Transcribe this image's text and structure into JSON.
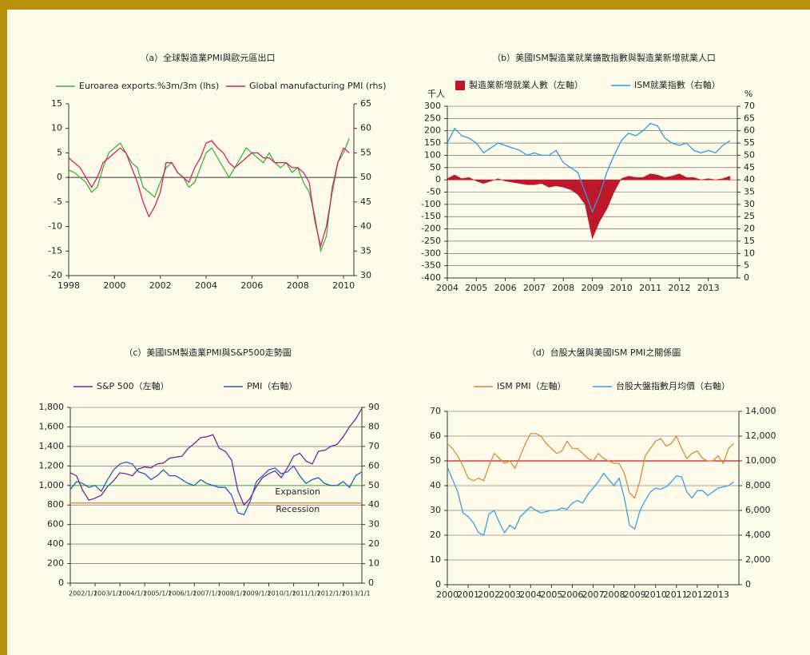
{
  "chart_data": [
    {
      "type": "line",
      "title": "（a）全球製造業PMI與歐元區出口",
      "grid": false,
      "zero_line": true,
      "xlim": [
        1998,
        2010.45
      ],
      "xticks": [
        1998,
        2000,
        2002,
        2004,
        2006,
        2008,
        2010
      ],
      "ylim": [
        -20,
        15
      ],
      "yticks": [
        -20,
        -15,
        -10,
        -5,
        0,
        5,
        10,
        15
      ],
      "y2lim": [
        30,
        65
      ],
      "y2ticks": [
        30,
        35,
        40,
        45,
        50,
        55,
        60,
        65
      ],
      "x": [
        1998,
        1998.25,
        1998.5,
        1998.75,
        1999,
        1999.25,
        1999.5,
        1999.75,
        2000,
        2000.25,
        2000.5,
        2000.75,
        2001,
        2001.25,
        2001.5,
        2001.75,
        2002,
        2002.25,
        2002.5,
        2002.75,
        2003,
        2003.25,
        2003.5,
        2003.75,
        2004,
        2004.25,
        2004.5,
        2004.75,
        2005,
        2005.25,
        2005.5,
        2005.75,
        2006,
        2006.25,
        2006.5,
        2006.75,
        2007,
        2007.25,
        2007.5,
        2007.75,
        2008,
        2008.25,
        2008.5,
        2008.75,
        2009,
        2009.25,
        2009.5,
        2009.75,
        2010,
        2010.25
      ],
      "series": [
        {
          "name": "Euroarea exports.%3m/3m (lhs)",
          "color": "#3cb043",
          "style": "line",
          "axis": "y",
          "values": [
            1.5,
            1,
            0,
            -1,
            -3,
            -2,
            2,
            5,
            6,
            7,
            5,
            3,
            2,
            -2,
            -3,
            -4,
            -1,
            2,
            3,
            1,
            0,
            -2,
            -1,
            2,
            5,
            6,
            4,
            2,
            0,
            2,
            4,
            6,
            5,
            4,
            3,
            5,
            3,
            2,
            3,
            1,
            2,
            -1,
            -3,
            -8,
            -15,
            -12,
            -2,
            3,
            5,
            8
          ]
        },
        {
          "name": "Global manufacturing PMI (rhs)",
          "color": "#d6215b",
          "style": "line",
          "axis": "y2",
          "values": [
            54,
            53,
            52,
            50,
            48,
            50,
            53,
            54,
            55,
            56,
            55,
            52,
            49,
            45,
            42,
            44,
            47,
            53,
            53,
            51,
            50,
            49,
            52,
            54,
            57,
            57.5,
            56,
            55,
            53,
            52,
            53,
            54,
            55,
            55,
            54,
            54,
            53,
            53,
            53,
            52,
            52,
            51,
            49,
            41,
            36,
            40,
            47,
            53,
            56,
            55
          ]
        }
      ]
    },
    {
      "type": "line",
      "title": "（b）美國ISM製造業就業擴散指數與製造業新增就業人口",
      "grid": true,
      "y_unit": "千人",
      "y2_unit": "%",
      "xlim": [
        2004,
        2014
      ],
      "xticks": [
        2004,
        2005,
        2006,
        2007,
        2008,
        2009,
        2010,
        2011,
        2012,
        2013
      ],
      "ylim": [
        -400,
        300
      ],
      "yticks": [
        -400,
        -350,
        -300,
        -250,
        -200,
        -150,
        -100,
        -50,
        0,
        50,
        100,
        150,
        200,
        250,
        300
      ],
      "y2lim": [
        0,
        70
      ],
      "y2ticks": [
        0,
        5,
        10,
        15,
        20,
        25,
        30,
        35,
        40,
        45,
        50,
        55,
        60,
        65,
        70
      ],
      "x": [
        2004,
        2004.25,
        2004.5,
        2004.75,
        2005,
        2005.25,
        2005.5,
        2005.75,
        2006,
        2006.25,
        2006.5,
        2006.75,
        2007,
        2007.25,
        2007.5,
        2007.75,
        2008,
        2008.25,
        2008.5,
        2008.75,
        2009,
        2009.25,
        2009.5,
        2009.75,
        2010,
        2010.25,
        2010.5,
        2010.75,
        2011,
        2011.25,
        2011.5,
        2011.75,
        2012,
        2012.25,
        2012.5,
        2012.75,
        2013,
        2013.25,
        2013.5,
        2013.75
      ],
      "series": [
        {
          "name": "製造業新增就業人數（左軸）",
          "color": "#c0182b",
          "style": "area",
          "axis": "y",
          "values": [
            5,
            20,
            5,
            10,
            -5,
            -15,
            -5,
            5,
            -5,
            -10,
            -15,
            -20,
            -20,
            -15,
            -30,
            -25,
            -30,
            -40,
            -60,
            -100,
            -240,
            -170,
            -120,
            -50,
            5,
            15,
            10,
            10,
            25,
            20,
            10,
            15,
            25,
            10,
            10,
            0,
            5,
            0,
            5,
            15
          ]
        },
        {
          "name": "ISM就業指數（右軸）",
          "color": "#2a9fd8",
          "style": "line",
          "axis": "y2",
          "values": [
            55,
            61,
            58,
            57,
            55,
            51,
            53,
            55,
            54,
            53,
            52,
            50,
            51,
            50,
            50,
            52,
            47,
            45,
            43,
            35,
            27,
            34,
            43,
            50,
            56,
            59,
            58,
            60,
            63,
            62,
            57,
            55,
            54,
            55,
            52,
            51,
            52,
            51,
            54,
            56
          ]
        }
      ]
    },
    {
      "type": "line",
      "title": "（c）美國ISM製造業PMI與S&P500走勢圖",
      "grid": true,
      "xlim": [
        2002,
        2013.75
      ],
      "xticks": [
        {
          "value": 2002,
          "label": "2002/1/1"
        },
        {
          "value": 2003,
          "label": "2003/1/1"
        },
        {
          "value": 2004,
          "label": "2004/1/1"
        },
        {
          "value": 2005,
          "label": "2005/1/1"
        },
        {
          "value": 2006,
          "label": "2006/1/1"
        },
        {
          "value": 2007,
          "label": "2007/1/1"
        },
        {
          "value": 2008,
          "label": "2008/1/1"
        },
        {
          "value": 2009,
          "label": "2009/1/1"
        },
        {
          "value": 2010,
          "label": "2010/1/1"
        },
        {
          "value": 2011,
          "label": "2011/1/1"
        },
        {
          "value": 2012,
          "label": "2012/1/1"
        },
        {
          "value": 2013,
          "label": "2013/1/1"
        }
      ],
      "ylim": [
        0,
        1800
      ],
      "yticks": [
        0,
        200,
        400,
        600,
        800,
        {
          "value": 1000,
          "label": "1,000"
        },
        {
          "value": 1200,
          "label": "1,200"
        },
        {
          "value": 1400,
          "label": "1,400"
        },
        {
          "value": 1600,
          "label": "1,600"
        },
        {
          "value": 1800,
          "label": "1,800"
        }
      ],
      "y2lim": [
        0,
        90
      ],
      "y2ticks": [
        0,
        10,
        20,
        30,
        40,
        50,
        60,
        70,
        80,
        90
      ],
      "reference_lines": [
        {
          "value": 50,
          "label": "Expansion",
          "color": "#5cb85c",
          "axis": "y2"
        },
        {
          "value": 41,
          "label": "Recession",
          "color": "#e07b39",
          "axis": "y2"
        }
      ],
      "x": [
        2002,
        2002.25,
        2002.5,
        2002.75,
        2003,
        2003.25,
        2003.5,
        2003.75,
        2004,
        2004.25,
        2004.5,
        2004.75,
        2005,
        2005.25,
        2005.5,
        2005.75,
        2006,
        2006.25,
        2006.5,
        2006.75,
        2007,
        2007.25,
        2007.5,
        2007.75,
        2008,
        2008.25,
        2008.5,
        2008.75,
        2009,
        2009.25,
        2009.5,
        2009.75,
        2010,
        2010.25,
        2010.5,
        2010.75,
        2011,
        2011.25,
        2011.5,
        2011.75,
        2012,
        2012.25,
        2012.5,
        2012.75,
        2013,
        2013.25,
        2013.5,
        2013.75
      ],
      "series": [
        {
          "name": "S&P 500（左軸）",
          "color": "#6a2c91",
          "style": "line",
          "axis": "y",
          "values": [
            1130,
            1100,
            950,
            850,
            870,
            900,
            990,
            1050,
            1130,
            1120,
            1100,
            1170,
            1190,
            1180,
            1220,
            1230,
            1280,
            1290,
            1300,
            1380,
            1430,
            1490,
            1500,
            1520,
            1380,
            1350,
            1260,
            950,
            800,
            870,
            990,
            1080,
            1120,
            1150,
            1080,
            1180,
            1300,
            1330,
            1250,
            1220,
            1350,
            1360,
            1400,
            1420,
            1500,
            1600,
            1680,
            1790
          ]
        },
        {
          "name": "PMI（右軸）",
          "color": "#1f5fb4",
          "style": "line",
          "axis": "y2",
          "values": [
            48,
            52,
            51,
            49,
            50,
            47,
            53,
            58,
            61,
            62,
            61,
            57,
            56,
            53,
            55,
            58,
            55,
            55,
            53,
            51,
            50,
            53,
            51,
            50,
            49,
            49,
            45,
            36,
            35,
            42,
            52,
            55,
            58,
            59,
            56,
            57,
            60,
            55,
            51,
            53,
            54,
            51,
            50,
            50,
            52,
            49,
            55,
            57
          ]
        }
      ]
    },
    {
      "type": "line",
      "title": "（d）台股大盤與美國ISM PMI之關係圖",
      "grid": true,
      "xlim": [
        2000,
        2014
      ],
      "xticks": [
        2000,
        2001,
        2002,
        2003,
        2004,
        2005,
        2006,
        2007,
        2008,
        2009,
        2010,
        2011,
        2012,
        2013
      ],
      "ylim": [
        0,
        70
      ],
      "yticks": [
        0,
        10,
        20,
        30,
        40,
        50,
        60,
        70
      ],
      "y2lim": [
        0,
        14000
      ],
      "y2ticks": [
        0,
        {
          "value": 2000,
          "label": "2,000"
        },
        {
          "value": 4000,
          "label": "4,000"
        },
        {
          "value": 6000,
          "label": "6,000"
        },
        {
          "value": 8000,
          "label": "8,000"
        },
        {
          "value": 10000,
          "label": "10,000"
        },
        {
          "value": 12000,
          "label": "12,000"
        },
        {
          "value": 14000,
          "label": "14,000"
        }
      ],
      "reference_lines": [
        {
          "value": 50,
          "color": "#c0182b",
          "axis": "y"
        }
      ],
      "x": [
        2000,
        2000.25,
        2000.5,
        2000.75,
        2001,
        2001.25,
        2001.5,
        2001.75,
        2002,
        2002.25,
        2002.5,
        2002.75,
        2003,
        2003.25,
        2003.5,
        2003.75,
        2004,
        2004.25,
        2004.5,
        2004.75,
        2005,
        2005.25,
        2005.5,
        2005.75,
        2006,
        2006.25,
        2006.5,
        2006.75,
        2007,
        2007.25,
        2007.5,
        2007.75,
        2008,
        2008.25,
        2008.5,
        2008.75,
        2009,
        2009.25,
        2009.5,
        2009.75,
        2010,
        2010.25,
        2010.5,
        2010.75,
        2011,
        2011.25,
        2011.5,
        2011.75,
        2012,
        2012.25,
        2012.5,
        2012.75,
        2013,
        2013.25,
        2013.5,
        2013.75
      ],
      "series": [
        {
          "name": "ISM PMI（左軸）",
          "color": "#d98a3a",
          "style": "line",
          "axis": "y",
          "values": [
            57,
            55,
            52,
            48,
            43,
            42,
            43,
            42,
            48,
            53,
            51,
            49,
            50,
            47,
            52,
            57,
            61,
            61,
            60,
            57,
            55,
            53,
            54,
            58,
            55,
            55,
            53,
            51,
            50,
            53,
            51,
            50,
            49,
            49,
            45,
            37,
            35,
            42,
            52,
            55,
            58,
            59,
            56,
            57,
            60,
            55,
            51,
            53,
            54,
            51,
            50,
            50,
            52,
            49,
            55,
            57
          ]
        },
        {
          "name": "台股大盤指數月均價（右軸）",
          "color": "#3aa0dc",
          "style": "line",
          "axis": "y2",
          "values": [
            9500,
            8500,
            7500,
            5800,
            5500,
            5000,
            4200,
            4000,
            5700,
            6000,
            5000,
            4200,
            4800,
            4500,
            5500,
            5900,
            6300,
            6000,
            5800,
            5900,
            6000,
            6000,
            6200,
            6100,
            6600,
            6800,
            6600,
            7300,
            7800,
            8300,
            9000,
            8500,
            8000,
            8600,
            7000,
            4800,
            4500,
            6000,
            6800,
            7500,
            7800,
            7700,
            7900,
            8300,
            8800,
            8700,
            7500,
            7000,
            7600,
            7600,
            7200,
            7500,
            7800,
            7900,
            8000,
            8300
          ]
        }
      ]
    }
  ]
}
